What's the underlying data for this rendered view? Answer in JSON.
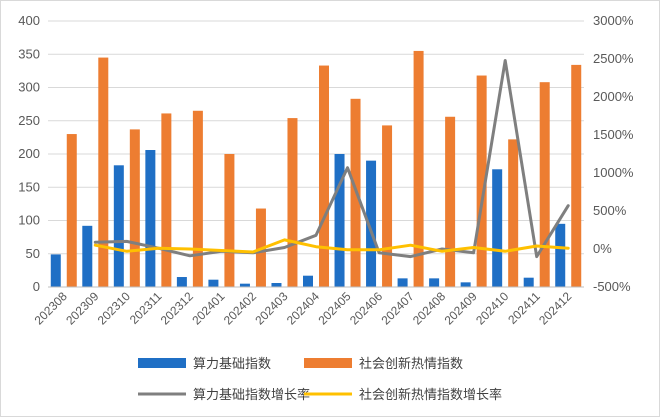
{
  "chart_data": {
    "type": "bar",
    "combo": "bar + line (secondary axis)",
    "categories": [
      "202308",
      "202309",
      "202310",
      "202311",
      "202312",
      "202401",
      "202402",
      "202403",
      "202404",
      "202405",
      "202406",
      "202407",
      "202408",
      "202409",
      "202410",
      "202411",
      "202412"
    ],
    "series": [
      {
        "name": "算力基础指数",
        "type": "bar",
        "axis": "left",
        "color": "#1f6fc5",
        "values": [
          49,
          92,
          183,
          206,
          15,
          11,
          5,
          6,
          17,
          200,
          190,
          13,
          13,
          7,
          177,
          14,
          95
        ]
      },
      {
        "name": "社会创新热情指数",
        "type": "bar",
        "axis": "left",
        "color": "#ed7d31",
        "values": [
          230,
          345,
          237,
          261,
          265,
          200,
          118,
          254,
          333,
          283,
          243,
          355,
          256,
          318,
          222,
          308,
          334
        ]
      },
      {
        "name": "算力基础指数增长率",
        "type": "line",
        "axis": "right",
        "color": "#7f7f7f",
        "values": [
          null,
          90,
          100,
          10,
          -90,
          -30,
          -50,
          20,
          180,
          1070,
          -50,
          -100,
          0,
          -50,
          2480,
          -100,
          570
        ]
      },
      {
        "name": "社会创新热情指数增长率",
        "type": "line",
        "axis": "right",
        "color": "#ffc000",
        "values": [
          null,
          50,
          -30,
          10,
          0,
          -20,
          -40,
          120,
          30,
          -10,
          -10,
          50,
          -30,
          20,
          -30,
          40,
          10
        ]
      }
    ],
    "y_left": {
      "lim": [
        0,
        400
      ],
      "ticks": [
        "0",
        "50",
        "100",
        "150",
        "200",
        "250",
        "300",
        "350",
        "400"
      ]
    },
    "y_right": {
      "lim": [
        -500,
        3000
      ],
      "ticks": [
        "-500%",
        "0%",
        "500%",
        "1000%",
        "1500%",
        "2000%",
        "2500%",
        "3000%"
      ]
    },
    "grid": true,
    "legend_position": "bottom"
  }
}
